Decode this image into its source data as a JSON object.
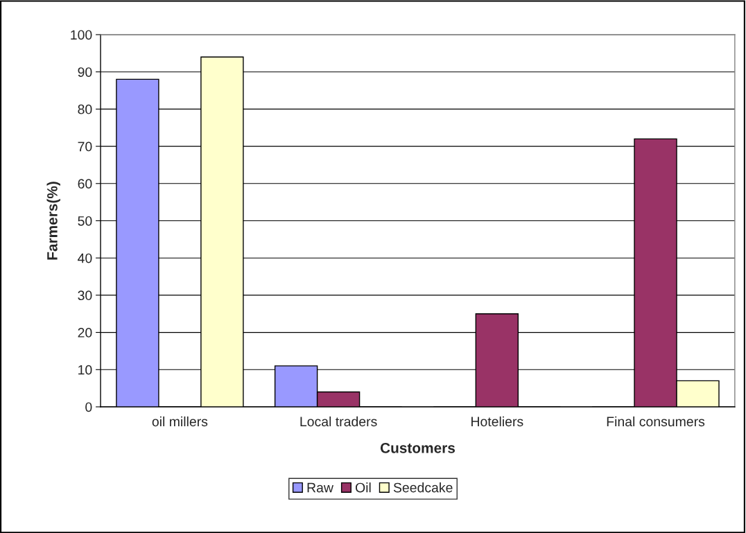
{
  "chart_data": {
    "type": "bar",
    "xlabel": "Customers",
    "ylabel": "Farmers(%)",
    "categories": [
      "oil millers",
      "Local traders",
      "Hoteliers",
      "Final consumers"
    ],
    "series": [
      {
        "name": "Raw",
        "color": "#9999ff",
        "values": [
          88,
          11,
          0,
          0
        ]
      },
      {
        "name": "Oil",
        "color": "#993366",
        "values": [
          0,
          4,
          25,
          72
        ]
      },
      {
        "name": "Seedcake",
        "color": "#ffffcc",
        "values": [
          94,
          0,
          0,
          7
        ]
      }
    ],
    "ylim": [
      0,
      100
    ],
    "yticks": [
      0,
      10,
      20,
      30,
      40,
      50,
      60,
      70,
      80,
      90,
      100
    ],
    "grid": "y",
    "legend": "bottom"
  }
}
